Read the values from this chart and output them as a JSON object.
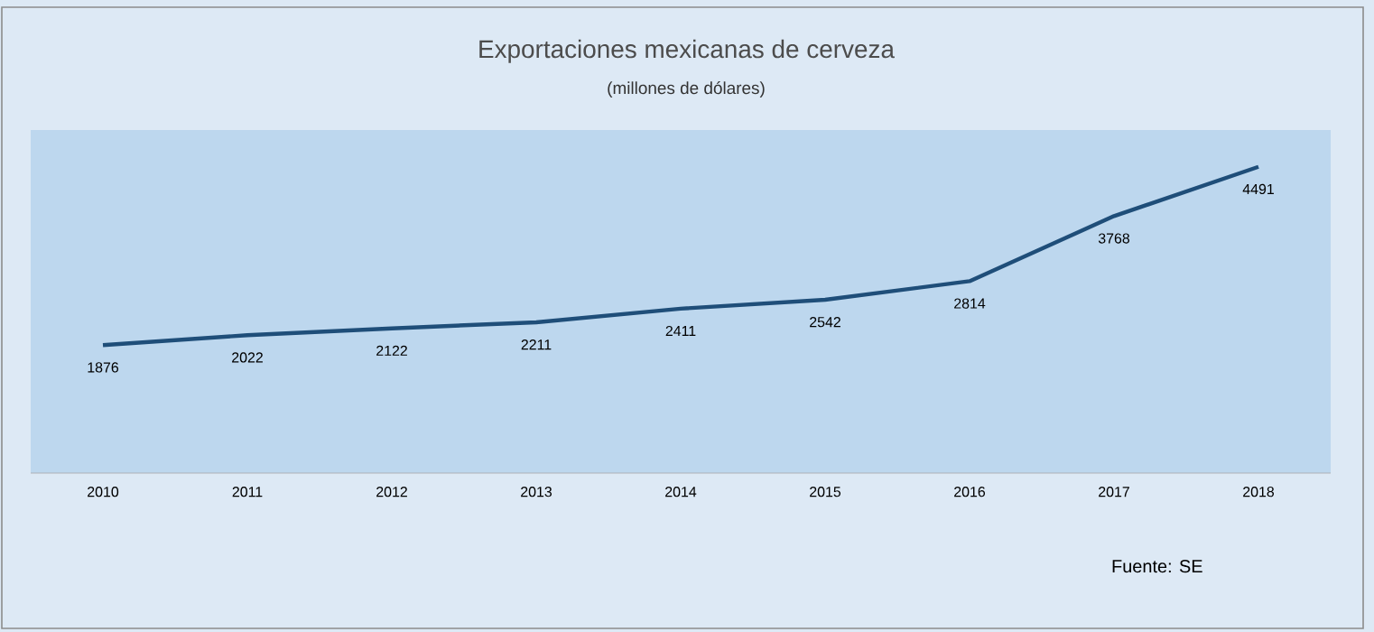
{
  "chart_data": {
    "type": "line",
    "title": "Exportaciones mexicanas de cerveza",
    "subtitle": "(millones de dólares)",
    "categories": [
      "2010",
      "2011",
      "2012",
      "2013",
      "2014",
      "2015",
      "2016",
      "2017",
      "2018"
    ],
    "values": [
      1876,
      2022,
      2122,
      2211,
      2411,
      2542,
      2814,
      3768,
      4491
    ],
    "color": "#1f4e79",
    "data_labels": true,
    "annotations": [
      "Fuente: SE"
    ]
  }
}
